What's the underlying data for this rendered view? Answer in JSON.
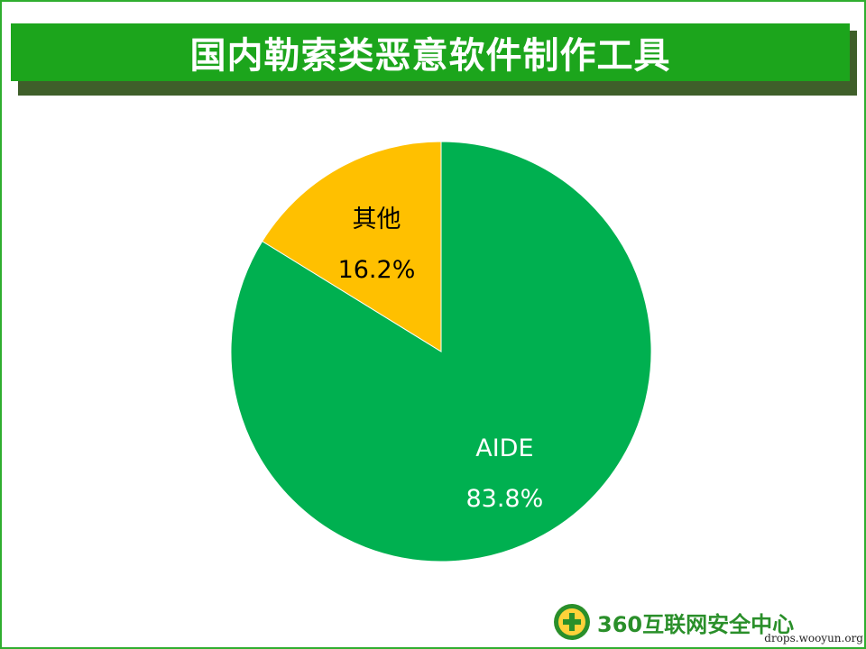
{
  "title": "国内勒索类恶意软件制作工具",
  "chart_data": {
    "type": "pie",
    "slices": [
      {
        "label": "AIDE",
        "value": 83.8,
        "value_label": "83.8%",
        "color": "#00b050",
        "text_color": "#ffffff"
      },
      {
        "label": "其他",
        "value": 16.2,
        "value_label": "16.2%",
        "color": "#ffc000",
        "text_color": "#000000"
      }
    ]
  },
  "logo": {
    "text": "360互联网安全中心",
    "color": "#2a8f2a"
  },
  "watermark": "drops.wooyun.org"
}
